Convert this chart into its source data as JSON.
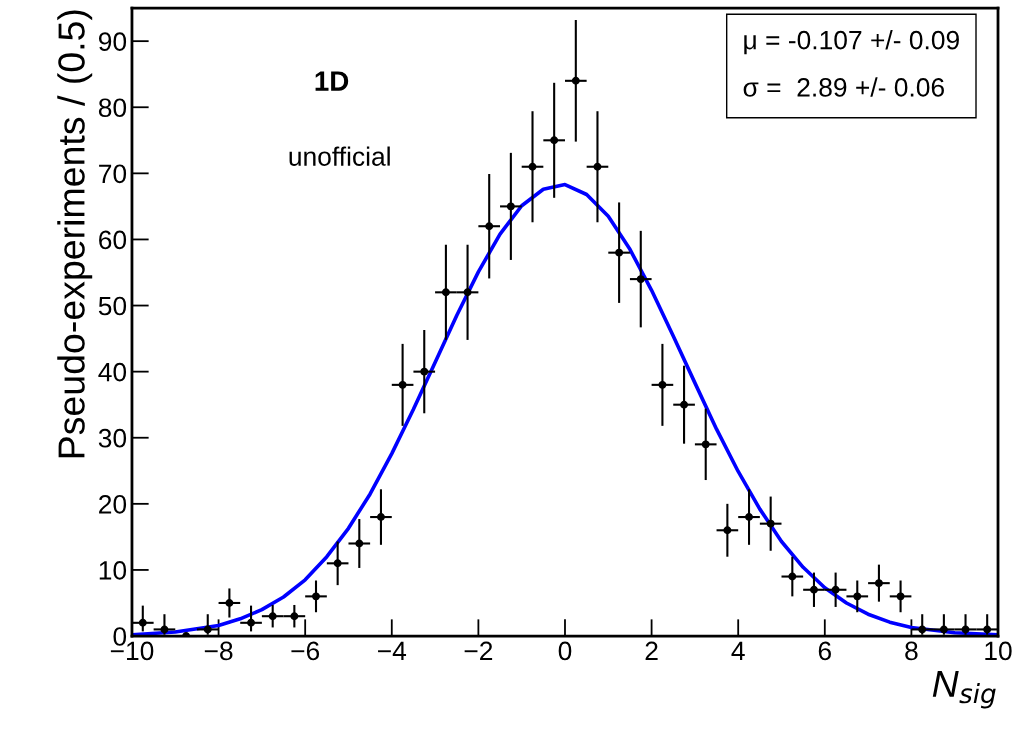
{
  "chart_data": {
    "type": "scatter",
    "xlabel": "N$_{sig}$",
    "ylabel": "Pseudo-experiments / (0.5)",
    "xlim": [
      -10,
      10
    ],
    "xticks": [
      {
        "value": -10,
        "label": "−10"
      },
      {
        "value": -8,
        "label": "−8"
      },
      {
        "value": -6,
        "label": "−6"
      },
      {
        "value": -4,
        "label": "−4"
      },
      {
        "value": -2,
        "label": "−2"
      },
      0,
      2,
      4,
      6,
      8,
      10
    ],
    "ylim": [
      0,
      95
    ],
    "yticks": [
      0,
      10,
      20,
      30,
      40,
      50,
      60,
      70,
      80,
      90
    ],
    "grid": false,
    "legend": false,
    "marker": "circle",
    "annotations": [
      "1D",
      "unofficial",
      "μ = -0.107 +/- 0.09",
      "σ =  2.89 +/- 0.06"
    ],
    "series": [
      {
        "color": "#000000",
        "x": [
          -9.75,
          -9.25,
          -8.75,
          -8.25,
          -7.75,
          -7.25,
          -6.75,
          -6.25,
          -5.75,
          -5.25,
          -4.75,
          -4.25,
          -3.75,
          -3.25,
          -2.75,
          -2.25,
          -1.75,
          -1.25,
          -0.75,
          -0.25,
          0.25,
          0.75,
          1.25,
          1.75,
          2.25,
          2.75,
          3.25,
          3.75,
          4.25,
          4.75,
          5.25,
          5.75,
          6.25,
          6.75,
          7.25,
          7.75,
          8.25,
          8.75,
          9.25,
          9.75
        ],
        "values": [
          2,
          1,
          0,
          1,
          5,
          2,
          3,
          3,
          6,
          11,
          14,
          18,
          38,
          40,
          52,
          52,
          62,
          65,
          71,
          75,
          84,
          71,
          58,
          54,
          38,
          35,
          29,
          16,
          18,
          17,
          9,
          7,
          7,
          6,
          8,
          6,
          1,
          1,
          1,
          1
        ],
        "errors": [
          [
            0.7,
            4.6
          ],
          [
            0.2,
            3.3
          ],
          null,
          [
            0.2,
            3.3
          ],
          2.2,
          [
            0.7,
            4.6
          ],
          1.7,
          1.7,
          2.4,
          3.3,
          3.7,
          4.2,
          6.2,
          6.3,
          7.2,
          7.2,
          7.9,
          8.1,
          8.4,
          8.7,
          9.2,
          8.4,
          7.6,
          7.3,
          6.2,
          5.9,
          5.4,
          4,
          4.2,
          4.1,
          3,
          2.6,
          2.6,
          2.4,
          2.8,
          2.4,
          [
            0.2,
            3.3
          ],
          [
            0.2,
            3.3
          ],
          [
            0.2,
            3.3
          ],
          [
            0.2,
            3.3
          ]
        ],
        "xerrors": [
          0.25,
          0.25,
          0.25,
          0.25,
          0.25,
          0.25,
          0.25,
          0.25,
          0.25,
          0.25,
          0.25,
          0.25,
          0.25,
          0.25,
          0.25,
          0.25,
          0.25,
          0.25,
          0.25,
          0.25,
          0.25,
          0.25,
          0.25,
          0.25,
          0.25,
          0.25,
          0.25,
          0.25,
          0.25,
          0.25,
          0.25,
          0.25,
          0.25,
          0.25,
          0.25,
          0.25,
          0.25,
          0.25,
          0.25,
          0.25
        ]
      },
      {
        "type": "line",
        "color": "#0000ff",
        "marker": "none",
        "line_style": "solid",
        "x": [
          -10,
          -9,
          -8,
          -7.5,
          -7,
          -6.5,
          -6,
          -5.5,
          -5,
          -4.5,
          -4,
          -3.5,
          -3,
          -2.5,
          -2,
          -1.5,
          -1,
          -0.5,
          0,
          0.5,
          1,
          1.5,
          2,
          2.5,
          3,
          3.5,
          4,
          4.5,
          5,
          5.5,
          6,
          6.5,
          7,
          7.5,
          8,
          9,
          10
        ],
        "values": [
          0.2,
          0.6,
          1.6,
          2.6,
          4,
          5.9,
          8.5,
          12,
          16.3,
          21.5,
          27.6,
          34.3,
          41.4,
          48.5,
          55.1,
          60.8,
          65.1,
          67.6,
          68.3,
          66.8,
          63.5,
          58.5,
          52.3,
          45.4,
          38.3,
          31.3,
          24.9,
          19.2,
          14.3,
          10.4,
          7.3,
          5,
          3.3,
          2.1,
          1.3,
          0.5,
          0.2
        ]
      }
    ]
  }
}
